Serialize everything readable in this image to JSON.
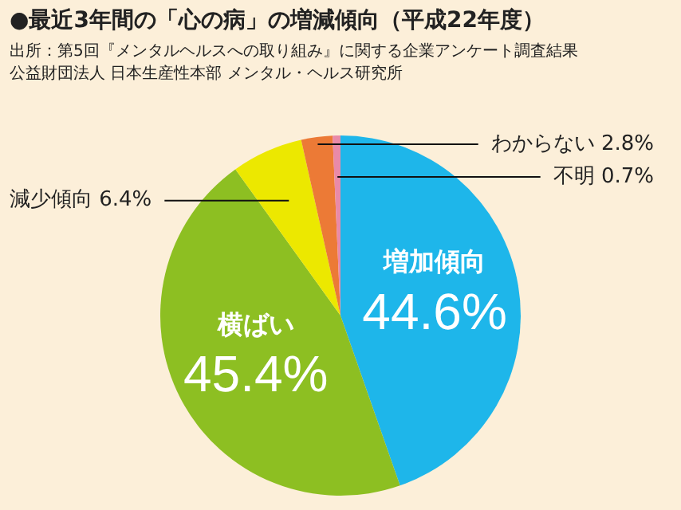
{
  "chart_data": {
    "type": "pie",
    "title": "●最近3年間の「心の病」の増減傾向（平成22年度）",
    "annotations": [
      "出所：第5回『メンタルヘルスへの取り組み』に関する企業アンケート調査結果",
      "公益財団法人 日本生産性本部 メンタル・ヘルス研究所"
    ],
    "categories": [
      "増加傾向",
      "横ばい",
      "減少傾向",
      "わからない",
      "不明"
    ],
    "values": [
      44.6,
      45.4,
      6.4,
      2.8,
      0.7
    ],
    "value_labels": [
      "44.6%",
      "45.4%",
      "6.4%",
      "2.8%",
      "0.7%"
    ],
    "colors": [
      "#1eb6ea",
      "#8dbf22",
      "#ece800",
      "#ec7a36",
      "#e98aa8"
    ]
  }
}
